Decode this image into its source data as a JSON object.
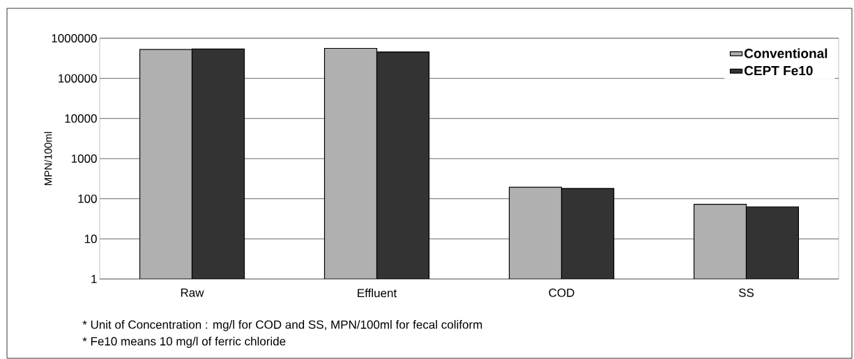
{
  "chart_data": {
    "type": "bar",
    "ylabel": "MPN/100ml",
    "categories": [
      "Raw",
      "Effluent",
      "COD",
      "SS"
    ],
    "series": [
      {
        "name": "Conventional",
        "color": "#b0b0b0",
        "values": [
          525000,
          560000,
          194,
          73
        ]
      },
      {
        "name": "CEPT Fe10",
        "color": "#333333",
        "values": [
          540000,
          457000,
          180,
          63
        ]
      }
    ],
    "log": "y",
    "ylim": [
      1,
      1000000
    ],
    "yticks": [
      1,
      10,
      100,
      1000,
      10000,
      100000,
      1000000
    ],
    "grid": "y",
    "legend": "top right",
    "annotations": [
      "* Unit of Concentration : mg/l for COD and SS, MPN/100ml for fecal coliform",
      "* Fe10 means 10 mg/l of ferric chloride"
    ]
  }
}
